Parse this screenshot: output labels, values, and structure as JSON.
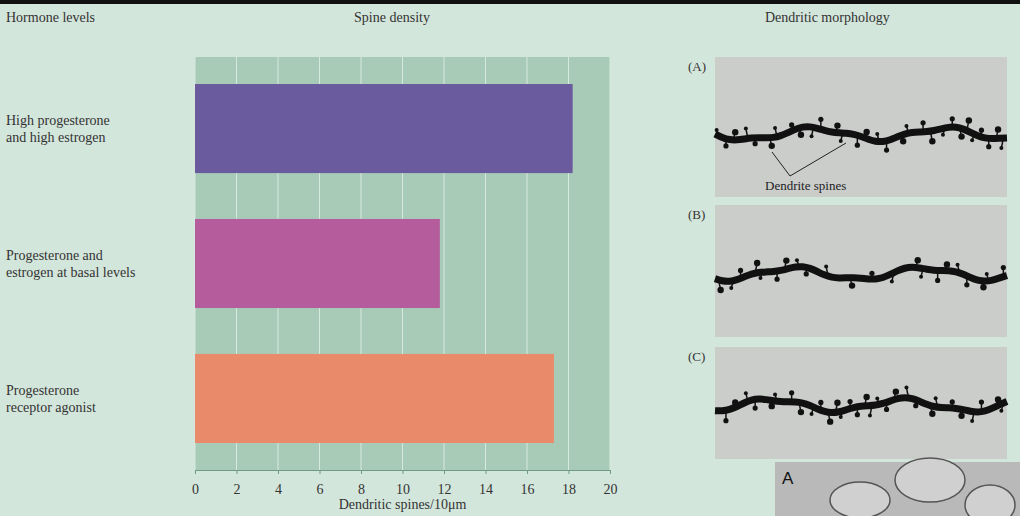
{
  "chart_data": {
    "type": "bar",
    "orientation": "horizontal",
    "title": "Spine density",
    "ylabel": "Hormone levels",
    "categories": [
      "High progesterone and high estrogen",
      "Progesterone and estrogen at basal levels",
      "Progesterone receptor agonist"
    ],
    "values": [
      18.2,
      11.8,
      17.3
    ],
    "colors": [
      "#6a5a9e",
      "#b55c9c",
      "#e98b6b"
    ],
    "xlim": [
      0,
      20
    ],
    "xticks": [
      0,
      2,
      4,
      6,
      8,
      10,
      12,
      14,
      16,
      18,
      20
    ],
    "xlabel": "Dendritic spines/10μm",
    "grid": true
  },
  "panels": {
    "title": "Dendritic morphology",
    "labels": [
      "(A)",
      "(B)",
      "(C)"
    ],
    "annotation": "Dendrite spines",
    "inset_label": "A"
  }
}
